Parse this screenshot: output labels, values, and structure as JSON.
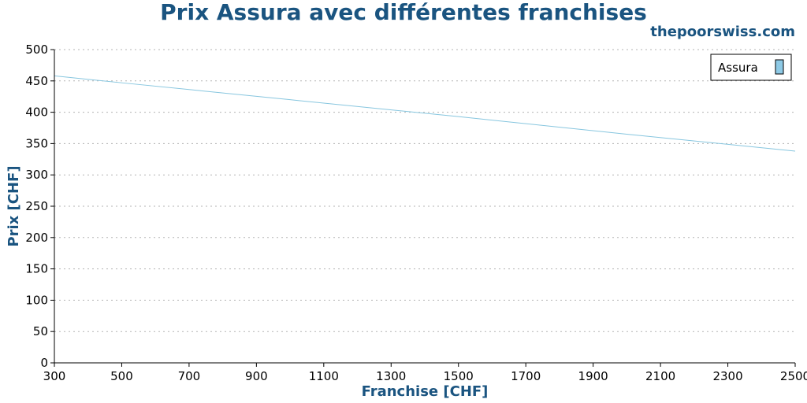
{
  "colors": {
    "title": "#1a5480",
    "series_line": "#87c6df",
    "legend_swatch_fill": "#8ecae6",
    "grid": "#b3b3b3",
    "axis": "#000000"
  },
  "chart_data": {
    "type": "line",
    "title": "Prix Assura avec différentes franchises",
    "source_label": "thepoorswiss.com",
    "xlabel": "Franchise [CHF]",
    "ylabel": "Prix [CHF]",
    "xlim": [
      300,
      2500
    ],
    "ylim": [
      0,
      500
    ],
    "x_ticks": [
      300,
      500,
      700,
      900,
      1100,
      1300,
      1500,
      1700,
      1900,
      2100,
      2300,
      2500
    ],
    "y_ticks": [
      0,
      50,
      100,
      150,
      200,
      250,
      300,
      350,
      400,
      450,
      500
    ],
    "grid": "horizontal-dotted",
    "legend_position": "top-right",
    "series": [
      {
        "name": "Assura",
        "x": [
          300,
          500,
          1000,
          1500,
          2000,
          2500
        ],
        "y": [
          458,
          447,
          420,
          393,
          365,
          338
        ]
      }
    ]
  }
}
